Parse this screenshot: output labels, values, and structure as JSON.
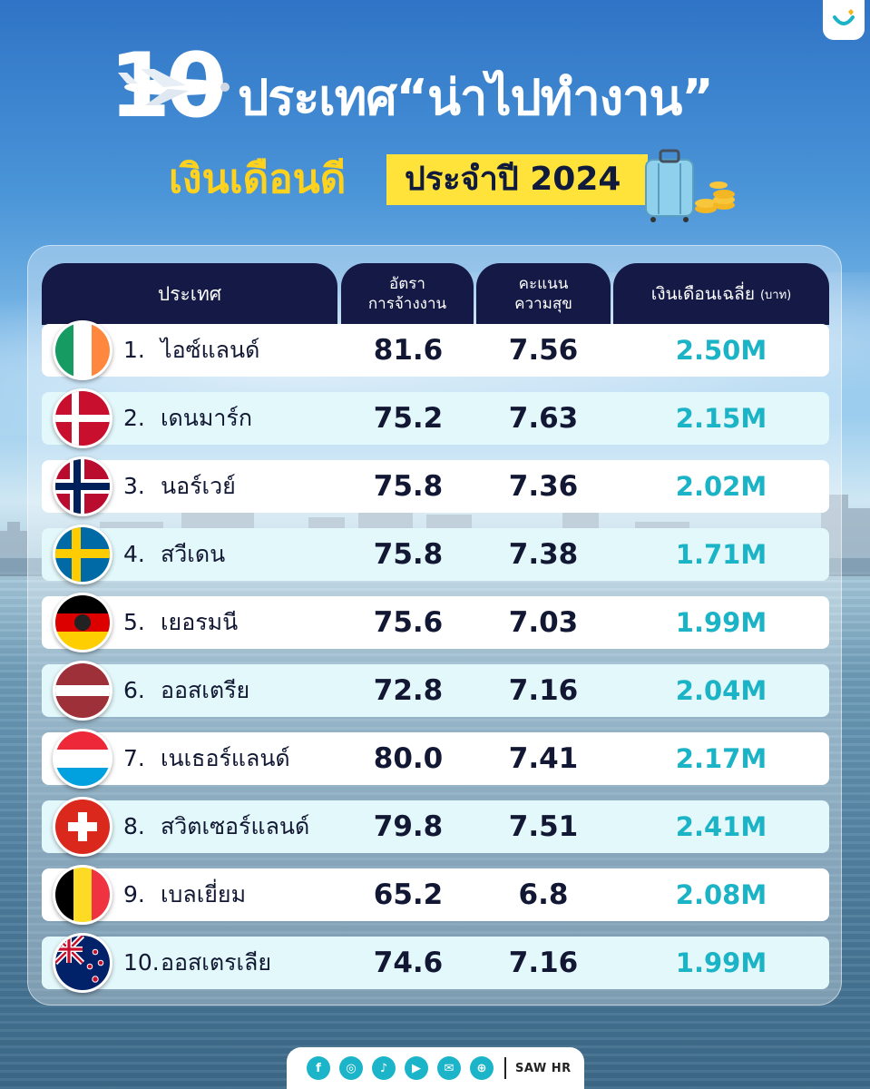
{
  "title": {
    "number": "10",
    "main": "ประเทศ“น่าไปทำงาน”",
    "sub_yellow": "เงินเดือนดี",
    "sub_badge": "ประจำปี 2024"
  },
  "table": {
    "headers": {
      "country": "ประเทศ",
      "employment_line1": "อัตรา",
      "employment_line2": "การจ้างงาน",
      "happiness_line1": "คะแนน",
      "happiness_line2": "ความสุข",
      "salary": "เงินเดือนเฉลี่ย",
      "salary_unit": "(บาท)"
    },
    "rows": [
      {
        "rank": "1.",
        "country": "ไอซ์แลนด์",
        "employment": "81.6",
        "happiness": "7.56",
        "salary": "2.50M",
        "flag": "ireland-flag-icon"
      },
      {
        "rank": "2.",
        "country": "เดนมาร์ก",
        "employment": "75.2",
        "happiness": "7.63",
        "salary": "2.15M",
        "flag": "denmark-flag-icon"
      },
      {
        "rank": "3.",
        "country": "นอร์เวย์",
        "employment": "75.8",
        "happiness": "7.36",
        "salary": "2.02M",
        "flag": "norway-flag-icon"
      },
      {
        "rank": "4.",
        "country": "สวีเดน",
        "employment": "75.8",
        "happiness": "7.38",
        "salary": "1.71M",
        "flag": "sweden-flag-icon"
      },
      {
        "rank": "5.",
        "country": "เยอรมนี",
        "employment": "75.6",
        "happiness": "7.03",
        "salary": "1.99M",
        "flag": "germany-flag-icon"
      },
      {
        "rank": "6.",
        "country": "ออสเตรีย",
        "employment": "72.8",
        "happiness": "7.16",
        "salary": "2.04M",
        "flag": "latvia-flag-icon"
      },
      {
        "rank": "7.",
        "country": "เนเธอร์แลนด์",
        "employment": "80.0",
        "happiness": "7.41",
        "salary": "2.17M",
        "flag": "luxembourg-flag-icon"
      },
      {
        "rank": "8.",
        "country": "สวิตเซอร์แลนด์",
        "employment": "79.8",
        "happiness": "7.51",
        "salary": "2.41M",
        "flag": "switzerland-flag-icon"
      },
      {
        "rank": "9.",
        "country": "เบลเยี่ยม",
        "employment": "65.2",
        "happiness": "6.8",
        "salary": "2.08M",
        "flag": "belgium-flag-icon"
      },
      {
        "rank": "10.",
        "country": "ออสเตรเลีย",
        "employment": "74.6",
        "happiness": "7.16",
        "salary": "1.99M",
        "flag": "new-zealand-flag-icon"
      }
    ]
  },
  "footer": {
    "icons": [
      "facebook-icon",
      "instagram-icon",
      "tiktok-icon",
      "youtube-icon",
      "line-icon",
      "website-icon"
    ],
    "brand": "SAW HR"
  },
  "colors": {
    "header_bg": "#141a45",
    "salary_text": "#1bb3c6",
    "badge_yellow": "#ffe23a",
    "alt_row": "#e3f8fb"
  }
}
